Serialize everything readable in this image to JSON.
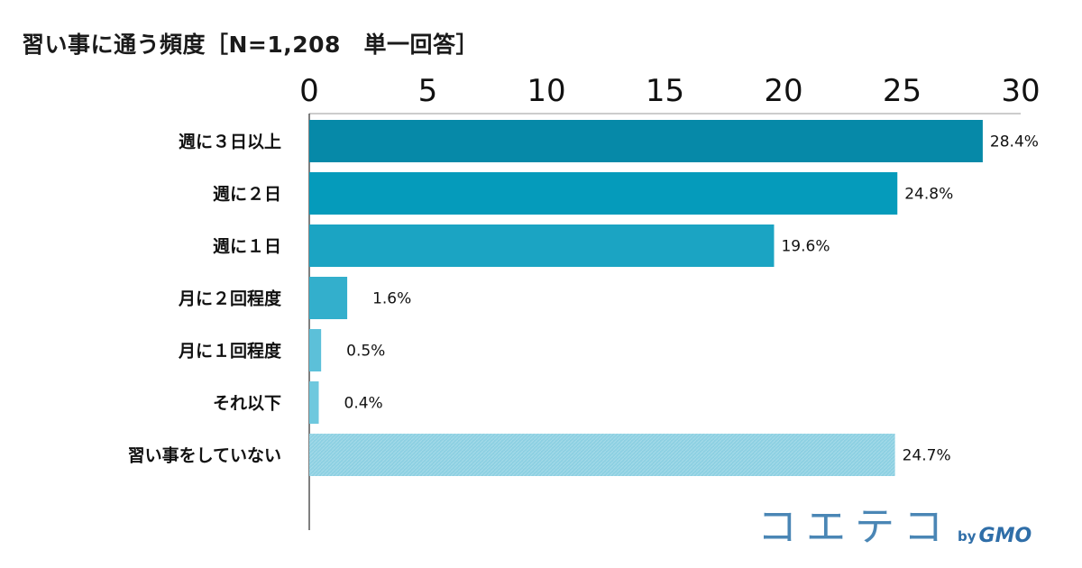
{
  "chart_data": {
    "type": "bar",
    "orientation": "horizontal",
    "title": "習い事に通う頻度［N=1,208　単一回答］",
    "categories": [
      "週に３日以上",
      "週に２日",
      "週に１日",
      "月に２回程度",
      "月に１回程度",
      "それ以下",
      "習い事をしていない"
    ],
    "values": [
      28.4,
      24.8,
      19.6,
      1.6,
      0.5,
      0.4,
      24.7
    ],
    "value_labels": [
      "28.4%",
      "24.8%",
      "19.6%",
      "1.6%",
      "0.5%",
      "0.4%",
      "24.7%"
    ],
    "xlim": [
      0,
      30
    ],
    "ticks": [
      0,
      5,
      10,
      15,
      20,
      25,
      30
    ],
    "tick_labels": [
      "0",
      "5",
      "10",
      "15",
      "20",
      "25",
      "30"
    ],
    "axis_position": "top",
    "grid": false,
    "colors": [
      "#0689a8",
      "#059bbb",
      "#1ba4c3",
      "#33afcc",
      "#5cc0d9",
      "#6ec8de",
      "#8dd0e2"
    ]
  },
  "brand": {
    "name": "コエテコ",
    "by": "by",
    "company": "GMO"
  }
}
